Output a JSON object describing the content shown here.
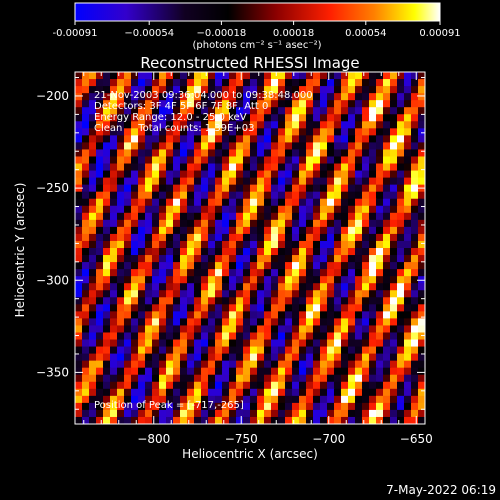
{
  "chart_data": {
    "type": "heatmap",
    "title": "Reconstructed RHESSI Image",
    "xlabel": "Heliocentric X (arcsec)",
    "ylabel": "Heliocentric Y (arcsec)",
    "xlim": [
      -845,
      -645
    ],
    "ylim": [
      -378,
      -187
    ],
    "x_ticks": [
      -800,
      -750,
      -700,
      -650
    ],
    "y_ticks": [
      -200,
      -250,
      -300,
      -350
    ],
    "x_tick_labels": [
      "−800",
      "−750",
      "−700",
      "−650"
    ],
    "y_tick_labels": [
      "−200",
      "−250",
      "−300",
      "−350"
    ],
    "colorbar": {
      "min": -0.00091,
      "max": 0.00091,
      "ticks": [
        -0.00091,
        -0.00054,
        -0.00018,
        0.00018,
        0.00054,
        0.00091
      ],
      "tick_labels": [
        "-0.00091",
        "−0.00054",
        "−0.00018",
        "0.00018",
        "0.00054",
        "0.00091"
      ],
      "unit_label": "(photons cm⁻² s⁻¹ asec⁻²)",
      "colormap": [
        "#0000ff",
        "#3300cc",
        "#000000",
        "#8b0000",
        "#ff0000",
        "#ff8000",
        "#ffff00",
        "#ffffff"
      ]
    },
    "annotations": [
      "21-Nov-2003 09:36:04.000 to 09:38:48.000",
      "Detectors: 3F 4F 5F 6F 7F 8F, Att 0",
      "Energy Range: 12.0 - 25.0 keV",
      "Clean     Total counts: 1.39E+03"
    ],
    "peak_label": "Position of Peak = [-717,-265]",
    "peak_position": [
      -717,
      -265
    ],
    "stripe_pattern": {
      "orientation": "diagonal, upper-left to lower-right",
      "value_range": [
        -0.00091,
        0.00091
      ]
    }
  },
  "footer": {
    "timestamp": "7-May-2022 06:19"
  }
}
